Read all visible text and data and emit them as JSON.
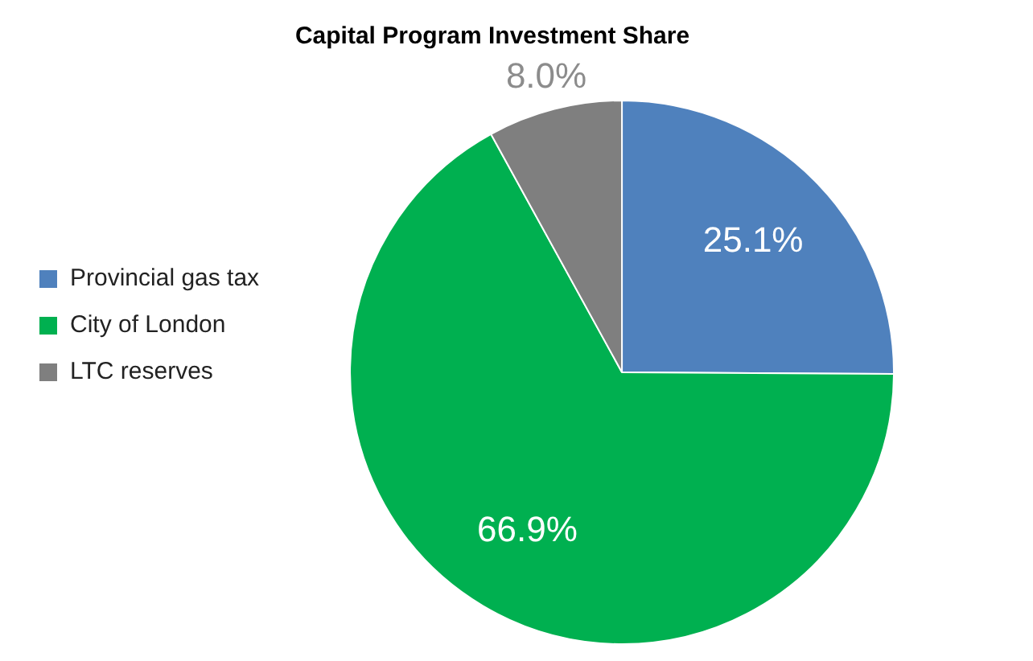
{
  "chart_data": {
    "type": "pie",
    "title": "Capital Program Investment Share",
    "categories": [
      "Provincial gas tax",
      "City of London",
      "LTC reserves"
    ],
    "values": [
      25.1,
      66.9,
      8.0
    ],
    "colors": [
      "#4f81bd",
      "#00b050",
      "#7f7f7f"
    ],
    "value_labels": [
      "25.1%",
      "66.9%",
      "8.0%"
    ],
    "legend": "left"
  }
}
